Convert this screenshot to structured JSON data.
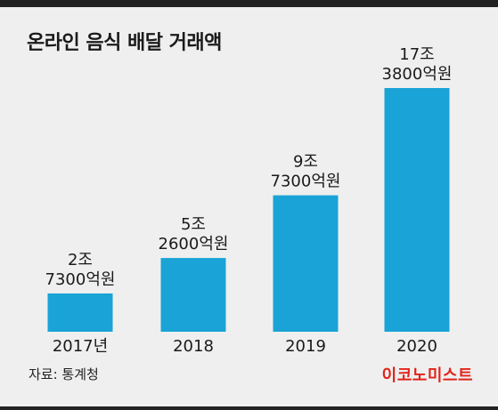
{
  "title": "온라인 음식 배달 거래액",
  "source": "자료: 통계청",
  "brand": "이코노미스트",
  "colors": {
    "bar": "#1aa3d6",
    "brand": "#e2231a",
    "background": "#efefef"
  },
  "chart_data": {
    "type": "bar",
    "title": "온라인 음식 배달 거래액",
    "categories": [
      "2017년",
      "2018",
      "2019",
      "2020"
    ],
    "values": [
      27300,
      52600,
      97300,
      173800
    ],
    "value_unit": "억원",
    "data_labels": [
      [
        "2조",
        "7300억원"
      ],
      [
        "5조",
        "2600억원"
      ],
      [
        "9조",
        "7300억원"
      ],
      [
        "17조",
        "3800억원"
      ]
    ],
    "ylim": [
      0,
      173800
    ],
    "grid": false,
    "legend": "none"
  }
}
